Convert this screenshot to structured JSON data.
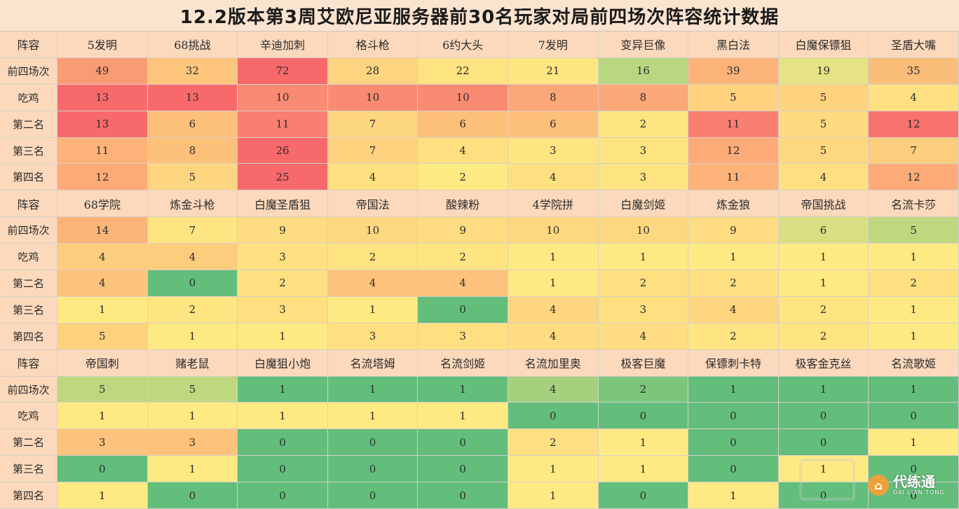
{
  "title": "12.2版本第3周艾欧尼亚服务器前30名玩家对局前四场次阵容统计数据",
  "row_labels": [
    "前四场次",
    "吃鸡",
    "第二名",
    "第三名",
    "第四名"
  ],
  "header_label": "阵容",
  "colors": {
    "header": "#fcd9bc",
    "heat_low": "#63be7b",
    "heat_mid": "#ffeb84",
    "heat_high": "#f8696b"
  },
  "blocks": [
    {
      "comps": [
        "5发明",
        "68挑战",
        "辛迪加刺",
        "格斗枪",
        "6约大头",
        "7发明",
        "变异巨像",
        "黑白法",
        "白魔保镖狙",
        "圣盾大嘴"
      ],
      "rows": [
        [
          "49",
          "32",
          "72",
          "28",
          "22",
          "21",
          "16",
          "39",
          "19",
          "35"
        ],
        [
          "13",
          "13",
          "10",
          "10",
          "10",
          "8",
          "8",
          "5",
          "5",
          "4"
        ],
        [
          "13",
          "6",
          "11",
          "7",
          "6",
          "6",
          "2",
          "11",
          "5",
          "12"
        ],
        [
          "11",
          "8",
          "26",
          "7",
          "4",
          "3",
          "3",
          "12",
          "5",
          "7"
        ],
        [
          "12",
          "5",
          "25",
          "4",
          "2",
          "4",
          "3",
          "11",
          "4",
          "12"
        ]
      ],
      "colors": [
        [
          "#f99c74",
          "#fdc67c",
          "#f8696b",
          "#fdd580",
          "#fee381",
          "#fee682",
          "#b9d780",
          "#fbb378",
          "#e5e383",
          "#fbbd7a"
        ],
        [
          "#f8696b",
          "#f8696b",
          "#f98b72",
          "#f98b72",
          "#f98b72",
          "#fba777",
          "#fba777",
          "#fed27f",
          "#fed27f",
          "#fee081"
        ],
        [
          "#f8696b",
          "#fdc07b",
          "#f97f70",
          "#fdd680",
          "#fdc07b",
          "#fdc07b",
          "#fee582",
          "#f97f70",
          "#feda80",
          "#f8736d"
        ],
        [
          "#fcb279",
          "#fcc07b",
          "#f8696b",
          "#fdd17e",
          "#fee081",
          "#fee581",
          "#fee581",
          "#fcab78",
          "#fed880",
          "#fdcd7e"
        ],
        [
          "#fcab78",
          "#fed680",
          "#f8696b",
          "#fee081",
          "#feea83",
          "#fee081",
          "#fee581",
          "#fcb279",
          "#fee081",
          "#fcab78"
        ]
      ]
    },
    {
      "comps": [
        "68学院",
        "炼金斗枪",
        "白魔圣盾狙",
        "帝国法",
        "酸辣粉",
        "4学院拼",
        "白魔剑姬",
        "炼金狼",
        "帝国挑战",
        "名流卡莎"
      ],
      "rows": [
        [
          "14",
          "7",
          "9",
          "10",
          "9",
          "10",
          "10",
          "9",
          "6",
          "5"
        ],
        [
          "4",
          "4",
          "3",
          "2",
          "2",
          "1",
          "1",
          "1",
          "1",
          "1"
        ],
        [
          "4",
          "0",
          "2",
          "4",
          "4",
          "1",
          "2",
          "2",
          "1",
          "2"
        ],
        [
          "1",
          "2",
          "3",
          "1",
          "0",
          "4",
          "3",
          "4",
          "2",
          "1"
        ],
        [
          "5",
          "1",
          "1",
          "3",
          "3",
          "4",
          "4",
          "2",
          "2",
          "1"
        ]
      ],
      "colors": [
        [
          "#fbb378",
          "#fee582",
          "#fedc81",
          "#fed880",
          "#fedc81",
          "#fed880",
          "#fed880",
          "#fedc81",
          "#d8df82",
          "#bfd880"
        ],
        [
          "#fdcd7e",
          "#fdcd7e",
          "#fee081",
          "#fee581",
          "#fee581",
          "#feea83",
          "#feea83",
          "#feea83",
          "#feea83",
          "#feea83"
        ],
        [
          "#fdc37c",
          "#63be7b",
          "#fee081",
          "#fdc37c",
          "#fdc37c",
          "#feea83",
          "#fee081",
          "#fee081",
          "#feea83",
          "#fee081"
        ],
        [
          "#feea83",
          "#fee581",
          "#fee081",
          "#feea83",
          "#63be7b",
          "#fed680",
          "#fee081",
          "#fed680",
          "#fee581",
          "#feea83"
        ],
        [
          "#fdd17e",
          "#feea83",
          "#feea83",
          "#fee081",
          "#fee081",
          "#fedc81",
          "#fedc81",
          "#fee581",
          "#fee581",
          "#feea83"
        ]
      ]
    },
    {
      "comps": [
        "帝国刺",
        "赌老鼠",
        "白魔狙小炮",
        "名流塔姆",
        "名流剑姬",
        "名流加里奥",
        "极客巨魔",
        "保镖刺卡特",
        "极客金克丝",
        "名流歌姬"
      ],
      "rows": [
        [
          "5",
          "5",
          "1",
          "1",
          "1",
          "4",
          "2",
          "1",
          "1",
          "1"
        ],
        [
          "1",
          "1",
          "1",
          "1",
          "1",
          "0",
          "0",
          "0",
          "0",
          "0"
        ],
        [
          "3",
          "3",
          "0",
          "0",
          "0",
          "2",
          "1",
          "0",
          "0",
          "1"
        ],
        [
          "0",
          "1",
          "0",
          "0",
          "0",
          "1",
          "1",
          "0",
          "1",
          "0"
        ],
        [
          "1",
          "0",
          "0",
          "0",
          "0",
          "1",
          "0",
          "1",
          "0",
          "0"
        ]
      ],
      "colors": [
        [
          "#bfd880",
          "#bfd880",
          "#63be7b",
          "#63be7b",
          "#63be7b",
          "#a6d07e",
          "#7cc67c",
          "#63be7b",
          "#63be7b",
          "#63be7b"
        ],
        [
          "#feea83",
          "#feea83",
          "#feea83",
          "#feea83",
          "#feea83",
          "#63be7b",
          "#63be7b",
          "#63be7b",
          "#63be7b",
          "#63be7b"
        ],
        [
          "#fdc37c",
          "#fdc37c",
          "#63be7b",
          "#63be7b",
          "#63be7b",
          "#fee081",
          "#feea83",
          "#63be7b",
          "#63be7b",
          "#feea83"
        ],
        [
          "#63be7b",
          "#feea83",
          "#63be7b",
          "#63be7b",
          "#63be7b",
          "#feea83",
          "#feea83",
          "#63be7b",
          "#feea83",
          "#63be7b"
        ],
        [
          "#feea83",
          "#63be7b",
          "#63be7b",
          "#63be7b",
          "#63be7b",
          "#feea83",
          "#63be7b",
          "#feea83",
          "#63be7b",
          "#63be7b"
        ]
      ]
    }
  ],
  "watermark": {
    "logo_icon": "tower-icon",
    "text_cn": "代练通",
    "text_en": "DAI LIAN TONG"
  }
}
